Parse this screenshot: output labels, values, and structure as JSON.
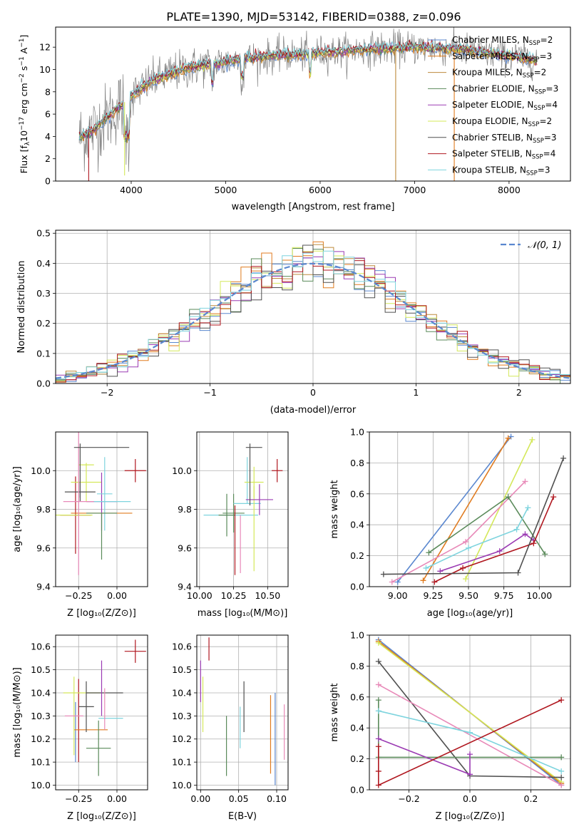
{
  "figure_title": "PLATE=1390, MJD=53142, FIBERID=0388, z=0.096",
  "panels": {
    "spectrum": {
      "xlabel": "wavelength [Angstrom, rest frame]",
      "ylabel": "Flux [f$_\\lambda$10$^{-17}$ erg cm$^{-2}$ s$^{-1}$ A$^{-1}$]",
      "ylabel_parts": [
        "Flux [f",
        "λ",
        "10",
        "−17",
        " erg cm",
        "−2",
        " s",
        "−1",
        " A",
        "−1",
        "]"
      ]
    },
    "residuals": {
      "xlabel": "(data-model)/error",
      "ylabel": "Normed distribution",
      "gauss_label": "𝒩(0, 1)"
    },
    "age_z": {
      "xlabel": "Z [log₁₀(Z/Z⊙)]",
      "ylabel": "age  [log₁₀(age/yr)]"
    },
    "age_mass": {
      "xlabel": "mass [log₁₀(M/M⊙)]"
    },
    "mw_age": {
      "xlabel": "age  [log₁₀(age/yr)]",
      "ylabel": "mass weight"
    },
    "mass_z": {
      "xlabel": "Z [log₁₀(Z/Z⊙)]",
      "ylabel": "mass [log₁₀(M/M⊙)]"
    },
    "mass_ebv": {
      "xlabel": "E(B-V)"
    },
    "mw_z": {
      "xlabel": "Z [log₁₀(Z/Z⊙)]",
      "ylabel": "mass weight"
    }
  },
  "models": [
    {
      "label": "Chabrier MILES, N$_{SSP}$=2",
      "imf": "Chabrier",
      "lib": "MILES",
      "nssp": "2",
      "color": "#5a87cf"
    },
    {
      "label": "Salpeter MILES, N$_{SSP}$=3",
      "imf": "Salpeter",
      "lib": "MILES",
      "nssp": "3",
      "color": "#e07b1f"
    },
    {
      "label": "Kroupa MILES, N$_{SSP}$=2",
      "imf": "Kroupa",
      "lib": "MILES",
      "nssp": "2",
      "color": "#bd8a3b"
    },
    {
      "label": "Chabrier ELODIE, N$_{SSP}$=3",
      "imf": "Chabrier",
      "lib": "ELODIE",
      "nssp": "3",
      "color": "#5a8a5a"
    },
    {
      "label": "Salpeter ELODIE, N$_{SSP}$=4",
      "imf": "Salpeter",
      "lib": "ELODIE",
      "nssp": "4",
      "color": "#9b3bb3"
    },
    {
      "label": "Kroupa ELODIE, N$_{SSP}$=2",
      "imf": "Kroupa",
      "lib": "ELODIE",
      "nssp": "2",
      "color": "#d4e85a"
    },
    {
      "label": "Chabrier STELIB, N$_{SSP}$=3",
      "imf": "Chabrier",
      "lib": "STELIB",
      "nssp": "3",
      "color": "#505050"
    },
    {
      "label": "Salpeter STELIB, N$_{SSP}$=4",
      "imf": "Salpeter",
      "lib": "STELIB",
      "nssp": "4",
      "color": "#b0171f"
    },
    {
      "label": "Kroupa STELIB, N$_{SSP}$=3",
      "imf": "Kroupa",
      "lib": "STELIB",
      "nssp": "3",
      "color": "#7ed4de"
    }
  ],
  "chart_data": [
    {
      "type": "line",
      "title": "PLATE=1390, MJD=53142, FIBERID=0388, z=0.096",
      "xlabel": "wavelength [Angstrom, rest frame]",
      "ylabel": "Flux [f$_\\lambda$10$^{-17}$ erg cm$^{-2}$ s$^{-1}$ A$^{-1}$]",
      "xlim": [
        3200,
        8650
      ],
      "ylim": [
        0,
        13.8
      ],
      "xticks": [
        4000,
        5000,
        6000,
        7000,
        8000
      ],
      "yticks": [
        0,
        2,
        4,
        6,
        8,
        10,
        12
      ],
      "legend_position": "upper right",
      "data_color": "#808080",
      "continuum": {
        "x": [
          3450,
          3600,
          3800,
          4000,
          4200,
          4400,
          4600,
          4800,
          5000,
          5200,
          5400,
          5600,
          5800,
          6000,
          6200,
          6500,
          7000,
          7500,
          8000,
          8300
        ],
        "y": [
          3.9,
          4.6,
          6.1,
          7.6,
          8.9,
          9.6,
          10.1,
          10.4,
          10.7,
          11.0,
          11.1,
          11.3,
          11.35,
          11.5,
          11.6,
          11.8,
          12.0,
          11.8,
          11.2,
          10.8
        ]
      },
      "dips": [
        {
          "x": 3550,
          "y": 0
        },
        {
          "x": 3930,
          "y": 0.5
        },
        {
          "x": 6800,
          "y": 0
        },
        {
          "x": 7420,
          "y": 0
        }
      ]
    },
    {
      "type": "line",
      "xlabel": "(data-model)/error",
      "ylabel": "Normed distribution",
      "xlim": [
        -2.5,
        2.5
      ],
      "ylim": [
        0,
        0.51
      ],
      "xticks": [
        -2,
        -1,
        0,
        1,
        2
      ],
      "yticks": [
        0.0,
        0.1,
        0.2,
        0.3,
        0.4,
        0.5
      ],
      "gaussian": {
        "name": "𝒩(0, 1)",
        "mean": 0,
        "sigma": 1,
        "color": "#5a87cf"
      },
      "hist_bins": 50
    },
    {
      "type": "scatter",
      "xlabel": "Z [log₁₀(Z/Z⊙)]",
      "ylabel": "age  [log₁₀(age/yr)]",
      "xlim": [
        -0.4,
        0.2
      ],
      "ylim": [
        9.4,
        10.2
      ],
      "xticks": [
        -0.25,
        0.0
      ],
      "yticks": [
        9.4,
        9.6,
        9.8,
        10.0
      ],
      "errorbars": [
        {
          "x": -0.27,
          "xerr": 0.1,
          "y": 9.77,
          "yerr": 0.2,
          "color": "#b0171f"
        },
        {
          "x": -0.1,
          "xerr": 0.2,
          "y": 9.78,
          "yerr": 0.0,
          "color": "#e07b1f"
        },
        {
          "x": -0.2,
          "xerr": 0.05,
          "y": 10.03,
          "yerr": 0.0,
          "color": "#d4e85a"
        },
        {
          "x": -0.2,
          "xerr": 0.1,
          "y": 9.94,
          "yerr": 0.1,
          "color": "#d4e85a"
        },
        {
          "x": -0.28,
          "xerr": 0.12,
          "y": 9.77,
          "yerr": 0.0,
          "color": "#d4e85a"
        },
        {
          "x": -0.24,
          "xerr": 0.1,
          "y": 9.89,
          "yerr": 0.05,
          "color": "#505050"
        },
        {
          "x": -0.1,
          "xerr": 0.1,
          "y": 9.84,
          "yerr": 0.15,
          "color": "#9b3bb3"
        },
        {
          "x": -0.25,
          "xerr": 0.1,
          "y": 9.84,
          "yerr": 0.38,
          "color": "#e889b8"
        },
        {
          "x": -0.2,
          "xerr": 0.0,
          "y": 9.98,
          "yerr": 0.0,
          "color": "#5a87cf"
        },
        {
          "x": -0.08,
          "xerr": 0.05,
          "y": 9.88,
          "yerr": 0.19,
          "color": "#7ed4de"
        },
        {
          "x": -0.03,
          "xerr": 0.12,
          "y": 9.84,
          "yerr": 0.0,
          "color": "#7ed4de"
        },
        {
          "x": -0.1,
          "xerr": 0.0,
          "y": 9.66,
          "yerr": 0.12,
          "color": "#5a8a5a"
        },
        {
          "x": -0.1,
          "xerr": 0.1,
          "y": 9.78,
          "yerr": 0.0,
          "color": "#5a8a5a"
        },
        {
          "x": -0.1,
          "xerr": 0.18,
          "y": 10.12,
          "yerr": 0.0,
          "color": "#505050"
        },
        {
          "x": -0.24,
          "xerr": 0.0,
          "y": 10.0,
          "yerr": 0.14,
          "color": "#505050"
        },
        {
          "x": 0.12,
          "xerr": 0.07,
          "y": 10.0,
          "yerr": 0.06,
          "color": "#b0171f"
        }
      ]
    },
    {
      "type": "scatter",
      "xlabel": "mass [log₁₀(M/M⊙)]",
      "xlim": [
        9.98,
        10.65
      ],
      "ylim": [
        9.4,
        10.2
      ],
      "xticks": [
        10.0,
        10.25,
        10.5
      ],
      "yticks": [
        9.4,
        9.6,
        9.8,
        10.0
      ],
      "errorbars": [
        {
          "x": 10.23,
          "xerr": 0.2,
          "y": 9.77,
          "yerr": 0.0,
          "color": "#7ed4de"
        },
        {
          "x": 10.25,
          "xerr": 0.08,
          "y": 9.78,
          "yerr": 0.1,
          "color": "#5a8a5a"
        },
        {
          "x": 10.2,
          "xerr": 0.06,
          "y": 9.77,
          "yerr": 0.11,
          "color": "#5a8a5a"
        },
        {
          "x": 10.26,
          "xerr": 0.0,
          "y": 9.64,
          "yerr": 0.18,
          "color": "#b0171f"
        },
        {
          "x": 10.3,
          "xerr": 0.0,
          "y": 9.62,
          "yerr": 0.15,
          "color": "#e889b8"
        },
        {
          "x": 10.35,
          "xerr": 0.0,
          "y": 9.95,
          "yerr": 0.12,
          "color": "#7ed4de"
        },
        {
          "x": 10.35,
          "xerr": 0.1,
          "y": 9.83,
          "yerr": 0.0,
          "color": "#7ed4de"
        },
        {
          "x": 10.4,
          "xerr": 0.07,
          "y": 9.94,
          "yerr": 0.08,
          "color": "#d4e85a"
        },
        {
          "x": 10.4,
          "xerr": 0.0,
          "y": 9.7,
          "yerr": 0.22,
          "color": "#d4e85a"
        },
        {
          "x": 10.44,
          "xerr": 0.1,
          "y": 9.85,
          "yerr": 0.08,
          "color": "#9b3bb3"
        },
        {
          "x": 10.4,
          "xerr": 0.06,
          "y": 10.12,
          "yerr": 0.0,
          "color": "#505050"
        },
        {
          "x": 10.37,
          "xerr": 0.0,
          "y": 9.98,
          "yerr": 0.16,
          "color": "#505050"
        },
        {
          "x": 10.57,
          "xerr": 0.04,
          "y": 10.0,
          "yerr": 0.06,
          "color": "#b0171f"
        }
      ]
    },
    {
      "type": "line",
      "xlabel": "age  [log₁₀(age/yr)]",
      "ylabel": "mass weight",
      "xlim": [
        8.8,
        10.22
      ],
      "ylim": [
        0,
        1
      ],
      "xticks": [
        9.0,
        9.25,
        9.5,
        9.75,
        10.0
      ],
      "yticks": [
        0.0,
        0.2,
        0.4,
        0.6,
        0.8,
        1.0
      ],
      "series": [
        {
          "x": [
            9.0,
            9.8
          ],
          "y": [
            0.03,
            0.97
          ],
          "color": "#5a87cf"
        },
        {
          "x": [
            9.18,
            9.78
          ],
          "y": [
            0.04,
            0.96
          ],
          "color": "#e07b1f"
        },
        {
          "x": [
            9.48,
            9.95
          ],
          "y": [
            0.05,
            0.95
          ],
          "color": "#d4e85a"
        },
        {
          "x": [
            8.96,
            9.48,
            9.9
          ],
          "y": [
            0.03,
            0.29,
            0.68
          ],
          "color": "#e889b8"
        },
        {
          "x": [
            9.22,
            9.78,
            10.04
          ],
          "y": [
            0.22,
            0.58,
            0.21
          ],
          "color": "#5a8a5a"
        },
        {
          "x": [
            9.3,
            9.72,
            9.9,
            9.96
          ],
          "y": [
            0.1,
            0.23,
            0.34,
            0.3
          ],
          "color": "#9b3bb3"
        },
        {
          "x": [
            9.2,
            9.5,
            9.84,
            9.92
          ],
          "y": [
            0.12,
            0.25,
            0.37,
            0.51
          ],
          "color": "#7ed4de"
        },
        {
          "x": [
            9.26,
            9.46,
            9.96,
            10.1
          ],
          "y": [
            0.03,
            0.12,
            0.28,
            0.58
          ],
          "color": "#b0171f"
        },
        {
          "x": [
            8.9,
            9.85,
            10.17
          ],
          "y": [
            0.08,
            0.09,
            0.83
          ],
          "color": "#505050"
        }
      ]
    },
    {
      "type": "scatter",
      "xlabel": "Z [log₁₀(Z/Z⊙)]",
      "ylabel": "mass [log₁₀(M/M⊙)]",
      "xlim": [
        -0.4,
        0.2
      ],
      "ylim": [
        9.98,
        10.65
      ],
      "xticks": [
        -0.25,
        0.0
      ],
      "yticks": [
        10.0,
        10.1,
        10.2,
        10.3,
        10.4,
        10.5,
        10.6
      ],
      "errorbars": [
        {
          "x": -0.27,
          "xerr": 0.0,
          "y": 10.23,
          "yerr": 0.13,
          "color": "#5a87cf"
        },
        {
          "x": -0.25,
          "xerr": 0.0,
          "y": 10.28,
          "yerr": 0.18,
          "color": "#b0171f"
        },
        {
          "x": -0.17,
          "xerr": 0.11,
          "y": 10.24,
          "yerr": 0.0,
          "color": "#e07b1f"
        },
        {
          "x": -0.28,
          "xerr": 0.0,
          "y": 10.3,
          "yerr": 0.17,
          "color": "#d4e85a"
        },
        {
          "x": -0.23,
          "xerr": 0.12,
          "y": 10.4,
          "yerr": 0.0,
          "color": "#d4e85a"
        },
        {
          "x": -0.28,
          "xerr": 0.06,
          "y": 10.3,
          "yerr": 0.0,
          "color": "#e889b8"
        },
        {
          "x": -0.2,
          "xerr": 0.05,
          "y": 10.34,
          "yerr": 0.11,
          "color": "#505050"
        },
        {
          "x": -0.08,
          "xerr": 0.12,
          "y": 10.4,
          "yerr": 0.0,
          "color": "#505050"
        },
        {
          "x": -0.1,
          "xerr": 0.0,
          "y": 10.42,
          "yerr": 0.12,
          "color": "#9b3bb3"
        },
        {
          "x": -0.04,
          "xerr": 0.08,
          "y": 10.29,
          "yerr": 0.0,
          "color": "#7ed4de"
        },
        {
          "x": -0.08,
          "xerr": 0.0,
          "y": 10.33,
          "yerr": 0.09,
          "color": "#e889b8"
        },
        {
          "x": -0.12,
          "xerr": 0.08,
          "y": 10.16,
          "yerr": 0.12,
          "color": "#5a8a5a"
        },
        {
          "x": 0.12,
          "xerr": 0.07,
          "y": 10.58,
          "yerr": 0.05,
          "color": "#b0171f"
        }
      ]
    },
    {
      "type": "scatter",
      "xlabel": "E(B-V)",
      "xlim": [
        -0.005,
        0.115
      ],
      "ylim": [
        9.98,
        10.65
      ],
      "xticks": [
        0.0,
        0.05,
        0.1
      ],
      "yticks": [
        10.0,
        10.1,
        10.2,
        10.3,
        10.4,
        10.5,
        10.6
      ],
      "errorbars": [
        {
          "x": 0.0,
          "xerr": 0.0,
          "y": 10.45,
          "yerr": 0.09,
          "color": "#9b3bb3"
        },
        {
          "x": 0.003,
          "xerr": 0.0,
          "y": 10.35,
          "yerr": 0.12,
          "color": "#d4e85a"
        },
        {
          "x": 0.011,
          "xerr": 0.0,
          "y": 10.59,
          "yerr": 0.05,
          "color": "#b0171f"
        },
        {
          "x": 0.034,
          "xerr": 0.0,
          "y": 10.17,
          "yerr": 0.13,
          "color": "#5a8a5a"
        },
        {
          "x": 0.052,
          "xerr": 0.0,
          "y": 10.25,
          "yerr": 0.09,
          "color": "#7ed4de"
        },
        {
          "x": 0.057,
          "xerr": 0.0,
          "y": 10.34,
          "yerr": 0.11,
          "color": "#505050"
        },
        {
          "x": 0.092,
          "xerr": 0.0,
          "y": 10.22,
          "yerr": 0.17,
          "color": "#e07b1f"
        },
        {
          "x": 0.098,
          "xerr": 0.0,
          "y": 10.2,
          "yerr": 0.2,
          "color": "#5a87cf"
        },
        {
          "x": 0.11,
          "xerr": 0.0,
          "y": 10.23,
          "yerr": 0.12,
          "color": "#e889b8"
        }
      ]
    },
    {
      "type": "line",
      "xlabel": "Z [log₁₀(Z/Z⊙)]",
      "ylabel": "mass weight",
      "xlim": [
        -0.33,
        0.33
      ],
      "ylim": [
        0,
        1
      ],
      "xticks": [
        -0.2,
        0.0,
        0.2
      ],
      "yticks": [
        0.0,
        0.2,
        0.4,
        0.6,
        0.8,
        1.0
      ],
      "series": [
        {
          "x": [
            -0.3,
            0.3
          ],
          "y": [
            0.97,
            0.03
          ],
          "color": "#5a87cf"
        },
        {
          "x": [
            -0.3,
            0.3
          ],
          "y": [
            0.96,
            0.04
          ],
          "color": "#e07b1f"
        },
        {
          "x": [
            -0.3,
            0.3
          ],
          "y": [
            0.95,
            0.05
          ],
          "color": "#d4e85a"
        },
        {
          "x": [
            -0.3,
            0.0,
            0.3
          ],
          "y": [
            0.83,
            0.09,
            0.08
          ],
          "color": "#505050"
        },
        {
          "x": [
            -0.3,
            0.3
          ],
          "y": [
            0.68,
            0.03
          ],
          "color": "#e889b8"
        },
        {
          "x": [
            -0.3,
            -0.3,
            0.3
          ],
          "y": [
            0.58,
            0.21,
            0.21
          ],
          "color": "#5a8a5a"
        },
        {
          "x": [
            -0.3,
            0.0,
            0.3
          ],
          "y": [
            0.51,
            0.37,
            0.12
          ],
          "color": "#7ed4de"
        },
        {
          "x": [
            -0.3,
            0.0,
            0.0
          ],
          "y": [
            0.33,
            0.1,
            0.23
          ],
          "color": "#9b3bb3"
        },
        {
          "x": [
            -0.3,
            -0.3,
            -0.3,
            0.3
          ],
          "y": [
            0.28,
            0.12,
            0.03,
            0.58
          ],
          "color": "#b0171f"
        }
      ]
    }
  ]
}
